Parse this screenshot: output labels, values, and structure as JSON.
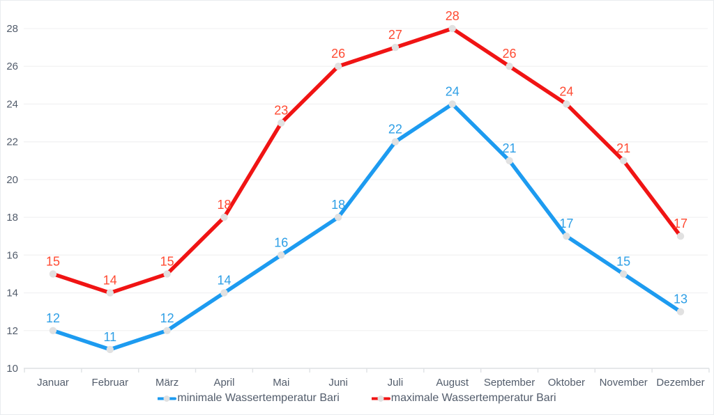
{
  "chart_data": {
    "type": "line",
    "title": "",
    "categories": [
      "Januar",
      "Februar",
      "März",
      "April",
      "Mai",
      "Juni",
      "Juli",
      "August",
      "September",
      "Oktober",
      "November",
      "Dezember"
    ],
    "series": [
      {
        "name": "minimale Wassertemperatur Bari",
        "values": [
          12,
          11,
          12,
          14,
          16,
          18,
          22,
          24,
          21,
          17,
          15,
          13
        ],
        "color": "#1D9BF0",
        "label_color": "#2E9FE6"
      },
      {
        "name": "maximale Wassertemperatur Bari",
        "values": [
          15,
          14,
          15,
          18,
          23,
          26,
          27,
          28,
          26,
          24,
          21,
          17
        ],
        "color": "#F01414",
        "label_color": "#FF4B33"
      }
    ],
    "y_axis": {
      "min": 10,
      "max": 28,
      "step": 2,
      "ticks": [
        10,
        12,
        14,
        16,
        18,
        20,
        22,
        24,
        26,
        28
      ]
    },
    "x_axis": {
      "label": ""
    },
    "grid": true,
    "legend_position": "bottom",
    "marker_color": "#E1E1E1",
    "style": {
      "grid_color": "#F2F2F3",
      "axis_color": "#DEE1E4",
      "text_color": "#525C6B",
      "border_color": "#E9ECEF",
      "background": "#FFFFFF"
    }
  }
}
